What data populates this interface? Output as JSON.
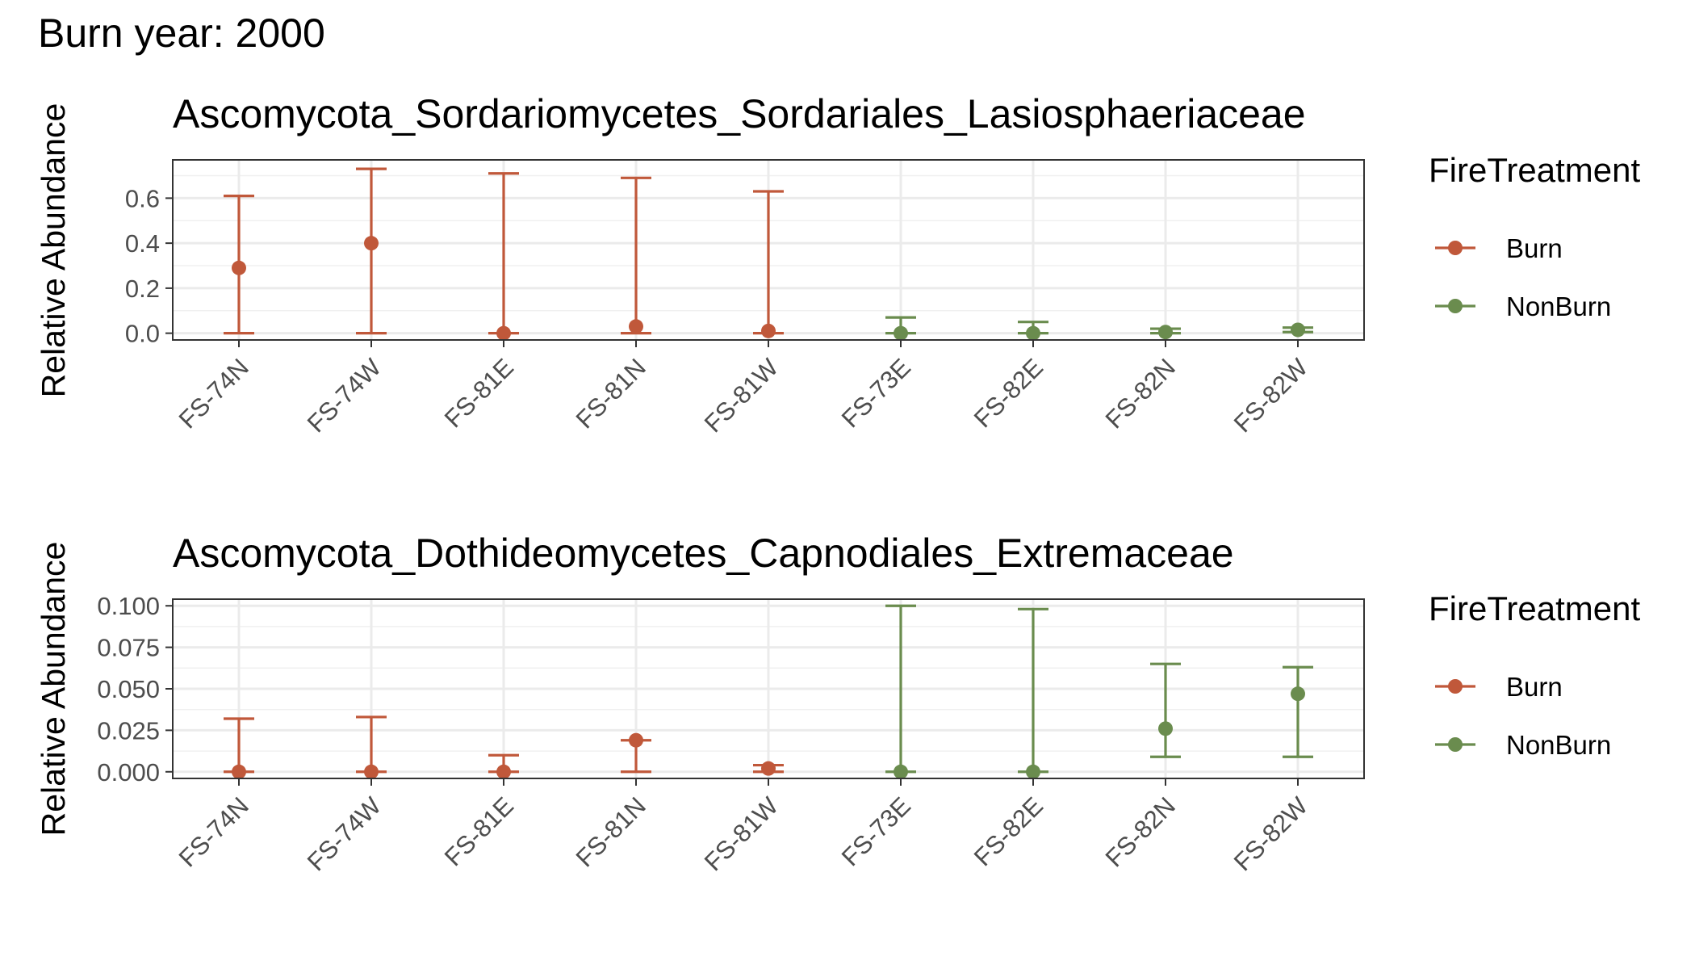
{
  "figure": {
    "title": "Burn year: 2000"
  },
  "colors": {
    "Burn": "#c0583a",
    "NonBurn": "#6a8c4e"
  },
  "chart_data": [
    {
      "type": "scatter",
      "title": "Ascomycota_Sordariomycetes_Sordariales_Lasiosphaeriaceae",
      "xlabel": "",
      "ylabel": "Relative Abundance",
      "ylim": [
        -0.03,
        0.77
      ],
      "yticks": [
        0.0,
        0.2,
        0.4,
        0.6
      ],
      "ytick_labels": [
        "0.0",
        "0.2",
        "0.4",
        "0.6"
      ],
      "categories": [
        "FS-74N",
        "FS-74W",
        "FS-81E",
        "FS-81N",
        "FS-81W",
        "FS-73E",
        "FS-82E",
        "FS-82N",
        "FS-82W"
      ],
      "legend": {
        "title": "FireTreatment",
        "entries": [
          "Burn",
          "NonBurn"
        ],
        "position": "right"
      },
      "grid": true,
      "points": [
        {
          "x": "FS-74N",
          "group": "Burn",
          "y": 0.29,
          "ymin": 0.0,
          "ymax": 0.61
        },
        {
          "x": "FS-74W",
          "group": "Burn",
          "y": 0.4,
          "ymin": 0.0,
          "ymax": 0.73
        },
        {
          "x": "FS-81E",
          "group": "Burn",
          "y": 0.0,
          "ymin": 0.0,
          "ymax": 0.71
        },
        {
          "x": "FS-81N",
          "group": "Burn",
          "y": 0.03,
          "ymin": 0.0,
          "ymax": 0.69
        },
        {
          "x": "FS-81W",
          "group": "Burn",
          "y": 0.01,
          "ymin": 0.0,
          "ymax": 0.63
        },
        {
          "x": "FS-73E",
          "group": "NonBurn",
          "y": 0.0,
          "ymin": 0.0,
          "ymax": 0.07
        },
        {
          "x": "FS-82E",
          "group": "NonBurn",
          "y": 0.0,
          "ymin": 0.0,
          "ymax": 0.05
        },
        {
          "x": "FS-82N",
          "group": "NonBurn",
          "y": 0.005,
          "ymin": 0.0,
          "ymax": 0.02
        },
        {
          "x": "FS-82W",
          "group": "NonBurn",
          "y": 0.015,
          "ymin": 0.005,
          "ymax": 0.025
        }
      ]
    },
    {
      "type": "scatter",
      "title": "Ascomycota_Dothideomycetes_Capnodiales_Extremaceae",
      "xlabel": "",
      "ylabel": "Relative Abundance",
      "ylim": [
        -0.004,
        0.104
      ],
      "yticks": [
        0.0,
        0.025,
        0.05,
        0.075,
        0.1
      ],
      "ytick_labels": [
        "0.000",
        "0.025",
        "0.050",
        "0.075",
        "0.100"
      ],
      "categories": [
        "FS-74N",
        "FS-74W",
        "FS-81E",
        "FS-81N",
        "FS-81W",
        "FS-73E",
        "FS-82E",
        "FS-82N",
        "FS-82W"
      ],
      "legend": {
        "title": "FireTreatment",
        "entries": [
          "Burn",
          "NonBurn"
        ],
        "position": "right"
      },
      "grid": true,
      "points": [
        {
          "x": "FS-74N",
          "group": "Burn",
          "y": 0.0,
          "ymin": 0.0,
          "ymax": 0.032
        },
        {
          "x": "FS-74W",
          "group": "Burn",
          "y": 0.0,
          "ymin": 0.0,
          "ymax": 0.033
        },
        {
          "x": "FS-81E",
          "group": "Burn",
          "y": 0.0,
          "ymin": 0.0,
          "ymax": 0.01
        },
        {
          "x": "FS-81N",
          "group": "Burn",
          "y": 0.019,
          "ymin": 0.0,
          "ymax": 0.019
        },
        {
          "x": "FS-81W",
          "group": "Burn",
          "y": 0.002,
          "ymin": 0.0,
          "ymax": 0.004
        },
        {
          "x": "FS-73E",
          "group": "NonBurn",
          "y": 0.0,
          "ymin": 0.0,
          "ymax": 0.1
        },
        {
          "x": "FS-82E",
          "group": "NonBurn",
          "y": 0.0,
          "ymin": 0.0,
          "ymax": 0.098
        },
        {
          "x": "FS-82N",
          "group": "NonBurn",
          "y": 0.026,
          "ymin": 0.009,
          "ymax": 0.065
        },
        {
          "x": "FS-82W",
          "group": "NonBurn",
          "y": 0.047,
          "ymin": 0.009,
          "ymax": 0.063
        }
      ]
    }
  ]
}
